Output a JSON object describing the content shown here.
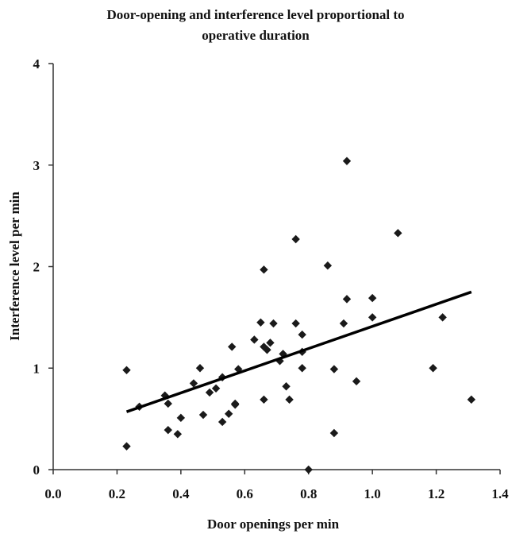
{
  "chart_data": {
    "type": "scatter",
    "title_lines": [
      "Door-opening and interference level proportional to",
      "operative duration"
    ],
    "xlabel": "Door openings per min",
    "ylabel": "Interference level per min",
    "xlim": [
      0.0,
      1.4
    ],
    "ylim": [
      0,
      4
    ],
    "x_ticks": [
      "0.0",
      "0.2",
      "0.4",
      "0.6",
      "0.8",
      "1.0",
      "1.2",
      "1.4"
    ],
    "y_ticks": [
      "0",
      "1",
      "2",
      "3",
      "4"
    ],
    "grid": false,
    "colors": {
      "marker": "#1a1a1a",
      "trendline": "#000000"
    },
    "points": [
      {
        "x": 0.23,
        "y": 0.98
      },
      {
        "x": 0.23,
        "y": 0.23
      },
      {
        "x": 0.27,
        "y": 0.62
      },
      {
        "x": 0.35,
        "y": 0.73
      },
      {
        "x": 0.36,
        "y": 0.65
      },
      {
        "x": 0.36,
        "y": 0.39
      },
      {
        "x": 0.39,
        "y": 0.35
      },
      {
        "x": 0.4,
        "y": 0.51
      },
      {
        "x": 0.44,
        "y": 0.85
      },
      {
        "x": 0.46,
        "y": 1.0
      },
      {
        "x": 0.47,
        "y": 0.54
      },
      {
        "x": 0.49,
        "y": 0.76
      },
      {
        "x": 0.51,
        "y": 0.8
      },
      {
        "x": 0.53,
        "y": 0.91
      },
      {
        "x": 0.53,
        "y": 0.47
      },
      {
        "x": 0.55,
        "y": 0.55
      },
      {
        "x": 0.56,
        "y": 1.21
      },
      {
        "x": 0.57,
        "y": 0.65
      },
      {
        "x": 0.57,
        "y": 0.64
      },
      {
        "x": 0.58,
        "y": 0.99
      },
      {
        "x": 0.63,
        "y": 1.28
      },
      {
        "x": 0.65,
        "y": 1.45
      },
      {
        "x": 0.66,
        "y": 1.21
      },
      {
        "x": 0.66,
        "y": 0.69
      },
      {
        "x": 0.66,
        "y": 1.97
      },
      {
        "x": 0.67,
        "y": 1.18
      },
      {
        "x": 0.68,
        "y": 1.25
      },
      {
        "x": 0.69,
        "y": 1.44
      },
      {
        "x": 0.71,
        "y": 1.07
      },
      {
        "x": 0.72,
        "y": 1.14
      },
      {
        "x": 0.73,
        "y": 0.82
      },
      {
        "x": 0.74,
        "y": 0.69
      },
      {
        "x": 0.76,
        "y": 2.27
      },
      {
        "x": 0.76,
        "y": 1.44
      },
      {
        "x": 0.78,
        "y": 1.16
      },
      {
        "x": 0.78,
        "y": 1.33
      },
      {
        "x": 0.78,
        "y": 1.0
      },
      {
        "x": 0.8,
        "y": 0.0
      },
      {
        "x": 0.86,
        "y": 2.01
      },
      {
        "x": 0.88,
        "y": 0.99
      },
      {
        "x": 0.88,
        "y": 0.36
      },
      {
        "x": 0.91,
        "y": 1.44
      },
      {
        "x": 0.92,
        "y": 3.04
      },
      {
        "x": 0.92,
        "y": 1.68
      },
      {
        "x": 0.95,
        "y": 0.87
      },
      {
        "x": 1.0,
        "y": 1.69
      },
      {
        "x": 1.0,
        "y": 1.5
      },
      {
        "x": 1.08,
        "y": 2.33
      },
      {
        "x": 1.19,
        "y": 1.0
      },
      {
        "x": 1.22,
        "y": 1.5
      },
      {
        "x": 1.31,
        "y": 0.69
      }
    ],
    "trendline": {
      "x": [
        0.23,
        1.31
      ],
      "y": [
        0.57,
        1.75
      ]
    }
  }
}
